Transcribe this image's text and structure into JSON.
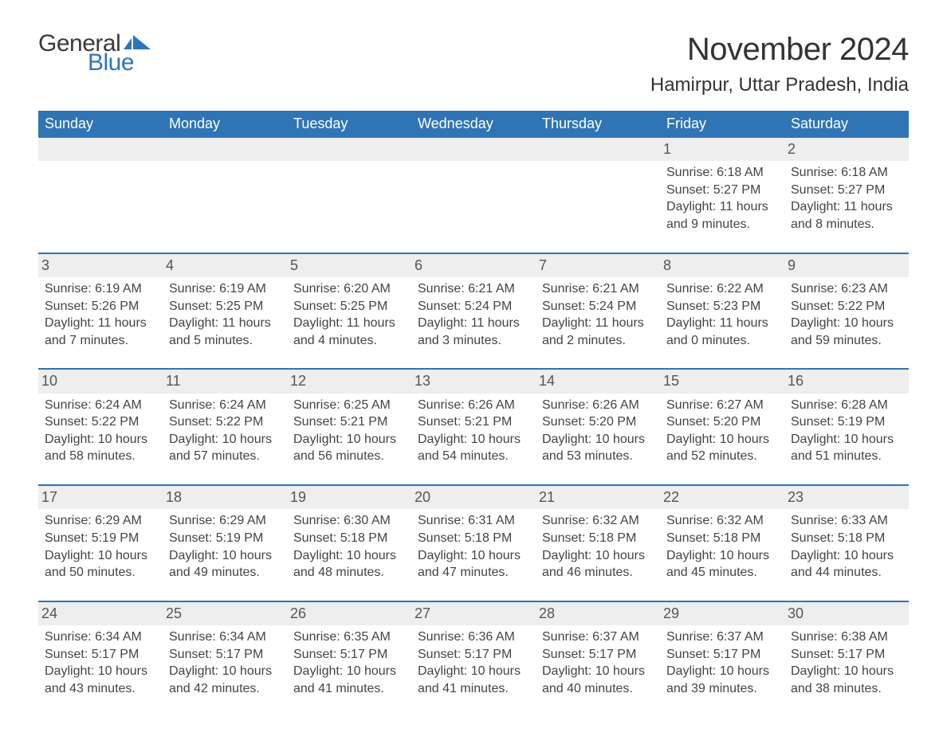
{
  "meta": {
    "logo_general": "General",
    "logo_blue": "Blue",
    "logo_flag_color": "#2f75b5",
    "month_title": "November 2024",
    "location": "Hamirpur, Uttar Pradesh, India",
    "header_bg": "#2f75b5",
    "header_fg": "#ffffff",
    "row_border_color": "#2f75b5",
    "daynum_bg": "#eeeeee",
    "text_color": "#444444",
    "font_family": "Arial, Helvetica, sans-serif"
  },
  "weekdays": [
    "Sunday",
    "Monday",
    "Tuesday",
    "Wednesday",
    "Thursday",
    "Friday",
    "Saturday"
  ],
  "calendar_type": "month-grid",
  "weeks": [
    [
      {
        "empty": true
      },
      {
        "empty": true
      },
      {
        "empty": true
      },
      {
        "empty": true
      },
      {
        "empty": true
      },
      {
        "day": "1",
        "sunrise": "6:18 AM",
        "sunset": "5:27 PM",
        "daylight": "11 hours and 9 minutes."
      },
      {
        "day": "2",
        "sunrise": "6:18 AM",
        "sunset": "5:27 PM",
        "daylight": "11 hours and 8 minutes."
      }
    ],
    [
      {
        "day": "3",
        "sunrise": "6:19 AM",
        "sunset": "5:26 PM",
        "daylight": "11 hours and 7 minutes."
      },
      {
        "day": "4",
        "sunrise": "6:19 AM",
        "sunset": "5:25 PM",
        "daylight": "11 hours and 5 minutes."
      },
      {
        "day": "5",
        "sunrise": "6:20 AM",
        "sunset": "5:25 PM",
        "daylight": "11 hours and 4 minutes."
      },
      {
        "day": "6",
        "sunrise": "6:21 AM",
        "sunset": "5:24 PM",
        "daylight": "11 hours and 3 minutes."
      },
      {
        "day": "7",
        "sunrise": "6:21 AM",
        "sunset": "5:24 PM",
        "daylight": "11 hours and 2 minutes."
      },
      {
        "day": "8",
        "sunrise": "6:22 AM",
        "sunset": "5:23 PM",
        "daylight": "11 hours and 0 minutes."
      },
      {
        "day": "9",
        "sunrise": "6:23 AM",
        "sunset": "5:22 PM",
        "daylight": "10 hours and 59 minutes."
      }
    ],
    [
      {
        "day": "10",
        "sunrise": "6:24 AM",
        "sunset": "5:22 PM",
        "daylight": "10 hours and 58 minutes."
      },
      {
        "day": "11",
        "sunrise": "6:24 AM",
        "sunset": "5:22 PM",
        "daylight": "10 hours and 57 minutes."
      },
      {
        "day": "12",
        "sunrise": "6:25 AM",
        "sunset": "5:21 PM",
        "daylight": "10 hours and 56 minutes."
      },
      {
        "day": "13",
        "sunrise": "6:26 AM",
        "sunset": "5:21 PM",
        "daylight": "10 hours and 54 minutes."
      },
      {
        "day": "14",
        "sunrise": "6:26 AM",
        "sunset": "5:20 PM",
        "daylight": "10 hours and 53 minutes."
      },
      {
        "day": "15",
        "sunrise": "6:27 AM",
        "sunset": "5:20 PM",
        "daylight": "10 hours and 52 minutes."
      },
      {
        "day": "16",
        "sunrise": "6:28 AM",
        "sunset": "5:19 PM",
        "daylight": "10 hours and 51 minutes."
      }
    ],
    [
      {
        "day": "17",
        "sunrise": "6:29 AM",
        "sunset": "5:19 PM",
        "daylight": "10 hours and 50 minutes."
      },
      {
        "day": "18",
        "sunrise": "6:29 AM",
        "sunset": "5:19 PM",
        "daylight": "10 hours and 49 minutes."
      },
      {
        "day": "19",
        "sunrise": "6:30 AM",
        "sunset": "5:18 PM",
        "daylight": "10 hours and 48 minutes."
      },
      {
        "day": "20",
        "sunrise": "6:31 AM",
        "sunset": "5:18 PM",
        "daylight": "10 hours and 47 minutes."
      },
      {
        "day": "21",
        "sunrise": "6:32 AM",
        "sunset": "5:18 PM",
        "daylight": "10 hours and 46 minutes."
      },
      {
        "day": "22",
        "sunrise": "6:32 AM",
        "sunset": "5:18 PM",
        "daylight": "10 hours and 45 minutes."
      },
      {
        "day": "23",
        "sunrise": "6:33 AM",
        "sunset": "5:18 PM",
        "daylight": "10 hours and 44 minutes."
      }
    ],
    [
      {
        "day": "24",
        "sunrise": "6:34 AM",
        "sunset": "5:17 PM",
        "daylight": "10 hours and 43 minutes."
      },
      {
        "day": "25",
        "sunrise": "6:34 AM",
        "sunset": "5:17 PM",
        "daylight": "10 hours and 42 minutes."
      },
      {
        "day": "26",
        "sunrise": "6:35 AM",
        "sunset": "5:17 PM",
        "daylight": "10 hours and 41 minutes."
      },
      {
        "day": "27",
        "sunrise": "6:36 AM",
        "sunset": "5:17 PM",
        "daylight": "10 hours and 41 minutes."
      },
      {
        "day": "28",
        "sunrise": "6:37 AM",
        "sunset": "5:17 PM",
        "daylight": "10 hours and 40 minutes."
      },
      {
        "day": "29",
        "sunrise": "6:37 AM",
        "sunset": "5:17 PM",
        "daylight": "10 hours and 39 minutes."
      },
      {
        "day": "30",
        "sunrise": "6:38 AM",
        "sunset": "5:17 PM",
        "daylight": "10 hours and 38 minutes."
      }
    ]
  ],
  "labels": {
    "sunrise_prefix": "Sunrise: ",
    "sunset_prefix": "Sunset: ",
    "daylight_prefix": "Daylight: "
  }
}
